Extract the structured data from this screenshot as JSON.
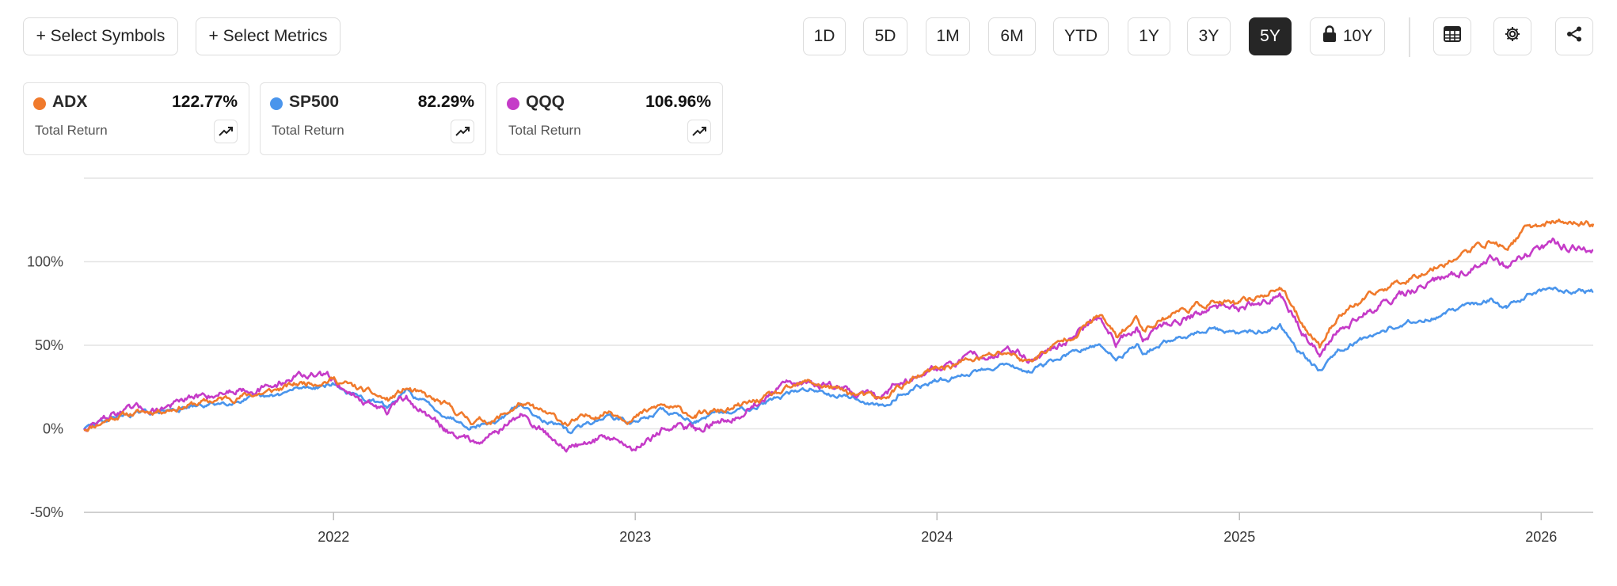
{
  "toolbar": {
    "select_symbols": "+ Select Symbols",
    "select_metrics": "+ Select Metrics",
    "ranges": [
      "1D",
      "5D",
      "1M",
      "6M",
      "YTD",
      "1Y",
      "3Y",
      "5Y",
      "10Y"
    ],
    "active_range": "5Y",
    "locked_range": "10Y"
  },
  "cards": [
    {
      "symbol": "ADX",
      "value": "122.77%",
      "label": "Total Return",
      "color": "#f07a2c"
    },
    {
      "symbol": "SP500",
      "value": "82.29%",
      "label": "Total Return",
      "color": "#4a95ec"
    },
    {
      "symbol": "QQQ",
      "value": "106.96%",
      "label": "Total Return",
      "color": "#c53bc8"
    }
  ],
  "chart_data": {
    "type": "line",
    "y_unit": "Total Return (%)",
    "ylim": [
      -50,
      150
    ],
    "yticks": [
      -50,
      0,
      50,
      100
    ],
    "ytick_labels": [
      "-50%",
      "0%",
      "50%",
      "100%"
    ],
    "xlim": [
      "2021-03-05",
      "2026-03-05"
    ],
    "xticks": [
      "2022-01-01",
      "2023-01-01",
      "2024-01-01",
      "2025-01-01",
      "2026-01-01"
    ],
    "xtick_labels": [
      "2022",
      "2023",
      "2024",
      "2025",
      "2026"
    ],
    "grid": true,
    "series": [
      {
        "name": "ADX",
        "color": "#f07a2c",
        "points": [
          [
            "2021-03-05",
            0
          ],
          [
            "2021-04-15",
            8
          ],
          [
            "2021-06-01",
            11
          ],
          [
            "2021-08-01",
            16
          ],
          [
            "2021-09-15",
            20
          ],
          [
            "2021-10-15",
            22
          ],
          [
            "2021-11-20",
            27
          ],
          [
            "2021-12-31",
            30
          ],
          [
            "2022-01-25",
            25
          ],
          [
            "2022-03-08",
            17
          ],
          [
            "2022-03-30",
            24
          ],
          [
            "2022-05-15",
            14
          ],
          [
            "2022-06-16",
            5
          ],
          [
            "2022-07-15",
            5
          ],
          [
            "2022-08-15",
            15
          ],
          [
            "2022-10-12",
            3
          ],
          [
            "2022-11-30",
            11
          ],
          [
            "2022-12-28",
            6
          ],
          [
            "2023-02-02",
            14
          ],
          [
            "2023-03-15",
            8
          ],
          [
            "2023-05-01",
            12
          ],
          [
            "2023-06-30",
            22
          ],
          [
            "2023-07-31",
            28
          ],
          [
            "2023-09-15",
            22
          ],
          [
            "2023-10-27",
            17
          ],
          [
            "2023-11-15",
            25
          ],
          [
            "2023-12-29",
            35
          ],
          [
            "2024-01-31",
            40
          ],
          [
            "2024-03-28",
            46
          ],
          [
            "2024-04-19",
            40
          ],
          [
            "2024-05-31",
            52
          ],
          [
            "2024-07-16",
            68
          ],
          [
            "2024-08-05",
            55
          ],
          [
            "2024-08-30",
            66
          ],
          [
            "2024-09-06",
            60
          ],
          [
            "2024-10-15",
            70
          ],
          [
            "2024-11-29",
            76
          ],
          [
            "2024-12-31",
            74
          ],
          [
            "2025-02-19",
            85
          ],
          [
            "2025-03-13",
            67
          ],
          [
            "2025-04-08",
            50
          ],
          [
            "2025-04-30",
            68
          ],
          [
            "2025-06-30",
            85
          ],
          [
            "2025-08-29",
            98
          ],
          [
            "2025-10-31",
            112
          ],
          [
            "2025-11-20",
            108
          ],
          [
            "2025-12-15",
            120
          ],
          [
            "2026-01-15",
            124
          ],
          [
            "2026-03-05",
            122.77
          ]
        ]
      },
      {
        "name": "SP500",
        "color": "#4a95ec",
        "points": [
          [
            "2021-03-05",
            0
          ],
          [
            "2021-04-15",
            8
          ],
          [
            "2021-06-01",
            10
          ],
          [
            "2021-08-01",
            14
          ],
          [
            "2021-09-15",
            18
          ],
          [
            "2021-10-15",
            18
          ],
          [
            "2021-11-20",
            24
          ],
          [
            "2021-12-31",
            27
          ],
          [
            "2022-01-25",
            20
          ],
          [
            "2022-03-08",
            13
          ],
          [
            "2022-03-30",
            22
          ],
          [
            "2022-05-15",
            9
          ],
          [
            "2022-06-16",
            2
          ],
          [
            "2022-07-15",
            4
          ],
          [
            "2022-08-15",
            14
          ],
          [
            "2022-10-12",
            -2
          ],
          [
            "2022-11-30",
            8
          ],
          [
            "2022-12-28",
            3
          ],
          [
            "2023-02-02",
            11
          ],
          [
            "2023-03-15",
            5
          ],
          [
            "2023-05-01",
            10
          ],
          [
            "2023-06-30",
            20
          ],
          [
            "2023-07-31",
            24
          ],
          [
            "2023-09-15",
            20
          ],
          [
            "2023-10-27",
            13
          ],
          [
            "2023-11-15",
            21
          ],
          [
            "2023-12-29",
            28
          ],
          [
            "2024-01-31",
            32
          ],
          [
            "2024-03-28",
            40
          ],
          [
            "2024-04-19",
            33
          ],
          [
            "2024-05-31",
            43
          ],
          [
            "2024-07-16",
            50
          ],
          [
            "2024-08-05",
            42
          ],
          [
            "2024-08-30",
            50
          ],
          [
            "2024-09-06",
            46
          ],
          [
            "2024-10-15",
            54
          ],
          [
            "2024-11-29",
            60
          ],
          [
            "2024-12-31",
            56
          ],
          [
            "2025-02-19",
            62
          ],
          [
            "2025-03-13",
            48
          ],
          [
            "2025-04-08",
            35
          ],
          [
            "2025-04-30",
            48
          ],
          [
            "2025-06-30",
            60
          ],
          [
            "2025-08-29",
            68
          ],
          [
            "2025-10-31",
            77
          ],
          [
            "2025-11-20",
            72
          ],
          [
            "2025-12-15",
            80
          ],
          [
            "2026-01-15",
            84
          ],
          [
            "2026-03-05",
            82.29
          ]
        ]
      },
      {
        "name": "QQQ",
        "color": "#c53bc8",
        "points": [
          [
            "2021-03-05",
            0
          ],
          [
            "2021-04-15",
            10
          ],
          [
            "2021-06-01",
            12
          ],
          [
            "2021-08-01",
            20
          ],
          [
            "2021-09-15",
            25
          ],
          [
            "2021-10-15",
            24
          ],
          [
            "2021-11-20",
            33
          ],
          [
            "2021-12-31",
            30
          ],
          [
            "2022-01-25",
            20
          ],
          [
            "2022-03-08",
            10
          ],
          [
            "2022-03-30",
            18
          ],
          [
            "2022-05-15",
            0
          ],
          [
            "2022-06-16",
            -7
          ],
          [
            "2022-07-15",
            -2
          ],
          [
            "2022-08-15",
            8
          ],
          [
            "2022-10-12",
            -12
          ],
          [
            "2022-11-30",
            -4
          ],
          [
            "2022-12-28",
            -12
          ],
          [
            "2023-02-02",
            0
          ],
          [
            "2023-03-15",
            0
          ],
          [
            "2023-05-01",
            8
          ],
          [
            "2023-06-30",
            25
          ],
          [
            "2023-07-31",
            28
          ],
          [
            "2023-09-15",
            24
          ],
          [
            "2023-10-27",
            18
          ],
          [
            "2023-11-15",
            28
          ],
          [
            "2023-12-29",
            36
          ],
          [
            "2024-01-31",
            40
          ],
          [
            "2024-03-28",
            48
          ],
          [
            "2024-04-19",
            42
          ],
          [
            "2024-05-31",
            50
          ],
          [
            "2024-07-16",
            68
          ],
          [
            "2024-08-05",
            52
          ],
          [
            "2024-08-30",
            62
          ],
          [
            "2024-09-06",
            54
          ],
          [
            "2024-10-15",
            65
          ],
          [
            "2024-11-29",
            72
          ],
          [
            "2024-12-31",
            72
          ],
          [
            "2025-02-19",
            80
          ],
          [
            "2025-03-13",
            62
          ],
          [
            "2025-04-08",
            45
          ],
          [
            "2025-04-30",
            60
          ],
          [
            "2025-06-30",
            77
          ],
          [
            "2025-08-29",
            88
          ],
          [
            "2025-10-31",
            102
          ],
          [
            "2025-11-20",
            96
          ],
          [
            "2025-12-15",
            105
          ],
          [
            "2026-01-15",
            110
          ],
          [
            "2026-03-05",
            106.96
          ]
        ]
      }
    ]
  }
}
